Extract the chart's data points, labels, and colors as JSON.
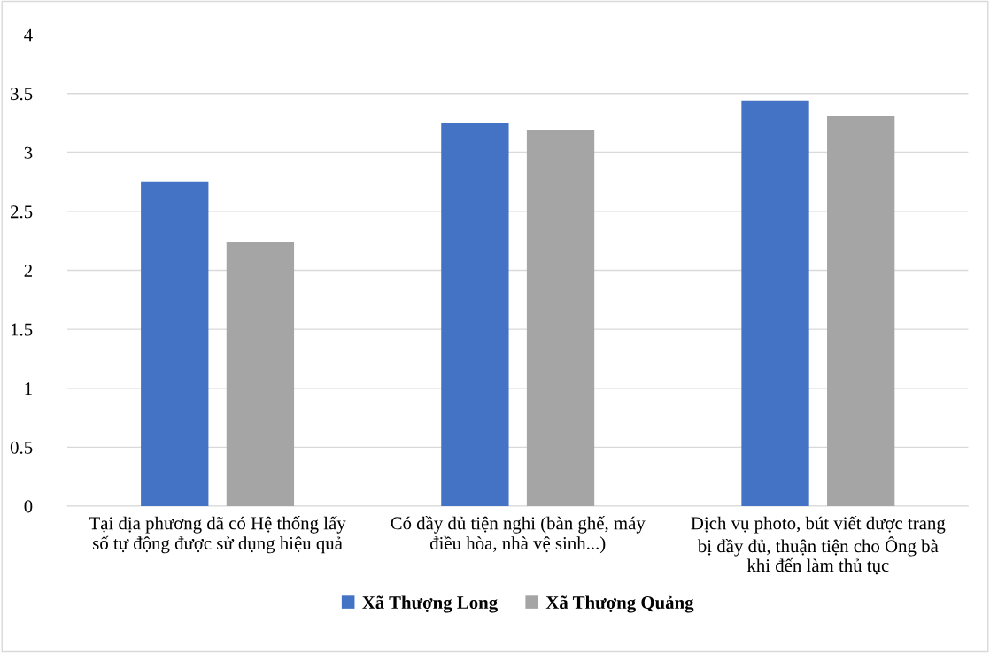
{
  "chart_data": {
    "type": "bar",
    "categories": [
      "Tại địa phương đã có Hệ thống lấy\nsố tự động được sử dụng hiệu quả",
      "Có đầy đủ tiện nghi (bàn ghế, máy\nđiều hòa, nhà vệ sinh...)",
      "Dịch vụ photo, bút viết được trang\nbị đầy đủ, thuận tiện cho Ông bà\nkhi đến làm thủ tục"
    ],
    "series": [
      {
        "name": "Xã Thượng Long",
        "color": "#4472c4",
        "values": [
          2.75,
          3.25,
          3.44
        ]
      },
      {
        "name": "Xã Thượng Quảng",
        "color": "#a5a5a5",
        "values": [
          2.24,
          3.19,
          3.31
        ]
      }
    ],
    "ylim": [
      0,
      4
    ],
    "yticks": [
      0,
      0.5,
      1,
      1.5,
      2,
      2.5,
      3,
      3.5,
      4
    ],
    "grid": "y",
    "legend": "bottom"
  }
}
